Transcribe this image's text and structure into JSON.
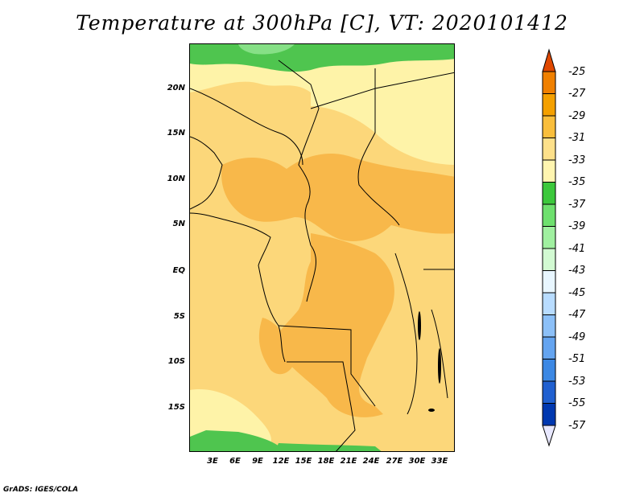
{
  "title": "Temperature at 300hPa [C], VT: 2020101412",
  "credit": "GrADS: IGES/COLA",
  "map": {
    "region": "Central Africa",
    "lat_labels": [
      "20N",
      "15N",
      "10N",
      "5N",
      "EQ",
      "5S",
      "10S",
      "15S"
    ],
    "lon_labels": [
      "3E",
      "6E",
      "9E",
      "12E",
      "15E",
      "18E",
      "21E",
      "24E",
      "27E",
      "30E",
      "33E"
    ]
  },
  "colorbar": {
    "labels": [
      "-25",
      "-27",
      "-29",
      "-31",
      "-33",
      "-35",
      "-37",
      "-39",
      "-41",
      "-43",
      "-45",
      "-47",
      "-49",
      "-51",
      "-53",
      "-55",
      "-57"
    ],
    "colors": [
      "#f08000",
      "#f4a000",
      "#f9be3c",
      "#fde08a",
      "#fff5b0",
      "#3cc83c",
      "#6ee06e",
      "#a0f0a0",
      "#d2fad2",
      "#e8f6ff",
      "#b8dcff",
      "#8cc0f8",
      "#64a4f0",
      "#3c88e4",
      "#2060d0",
      "#0038b0"
    ],
    "top_color": "#e04800",
    "bottom_color": "#e8e8ff"
  },
  "field_colors": {
    "minus_29_31": "#f8b84a",
    "minus_31_33": "#fcd77a",
    "minus_33_35": "#fef3a8",
    "minus_35_37": "#4fc54f",
    "minus_37_39": "#86e086"
  }
}
